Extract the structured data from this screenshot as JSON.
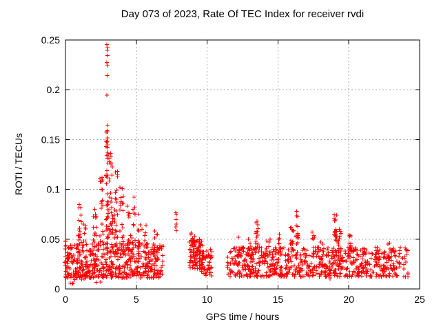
{
  "window_title": "Day 073 of 2023, Rate Of TEC Index for receiver rvdi",
  "chart_data": {
    "type": "scatter",
    "title": "Day 073 of 2023, Rate Of TEC Index for receiver rvdi",
    "xlabel": "GPS time / hours",
    "ylabel": "ROTI / TECUs",
    "xlim": [
      0,
      25
    ],
    "ylim": [
      0,
      0.25
    ],
    "xticks": [
      0,
      5,
      10,
      15,
      20,
      25
    ],
    "xtick_labels": [
      "0",
      "5",
      "10",
      "15",
      "20",
      "25"
    ],
    "yticks": [
      0,
      0.05,
      0.1,
      0.15,
      0.2,
      0.25
    ],
    "ytick_labels": [
      "0",
      "0.05",
      "0.1",
      "0.15",
      "0.2",
      "0.25"
    ],
    "grid": "dotted interior gridlines",
    "legend": "none",
    "marker": "plus",
    "marker_color": "#ff0000",
    "grid_color": "#a8a8a8",
    "axis_color": "#000000",
    "seed": 73,
    "bands": [
      {
        "x0": -0.04,
        "x1": 6.9,
        "y0": 0.011,
        "y1": 0.046,
        "n": 560,
        "skew": 1.35
      },
      {
        "x0": 0.3,
        "x1": 2.8,
        "y0": 0.005,
        "y1": 0.012,
        "n": 8,
        "skew": 1.0
      },
      {
        "x0": 8.75,
        "x1": 9.7,
        "y0": 0.02,
        "y1": 0.05,
        "n": 85,
        "skew": 1.2
      },
      {
        "x0": 9.55,
        "x1": 10.35,
        "y0": 0.013,
        "y1": 0.04,
        "n": 55,
        "skew": 1.2
      },
      {
        "x0": 11.4,
        "x1": 24.2,
        "y0": 0.012,
        "y1": 0.042,
        "n": 730,
        "skew": 1.3
      }
    ],
    "spikes": [
      {
        "x": 0.12,
        "w": 0.25,
        "y0": 0.012,
        "y1": 0.048,
        "n": 18
      },
      {
        "x": 1.02,
        "w": 0.25,
        "y0": 0.045,
        "y1": 0.085,
        "n": 16
      },
      {
        "x": 1.35,
        "w": 0.2,
        "y0": 0.04,
        "y1": 0.065,
        "n": 8
      },
      {
        "x": 2.1,
        "w": 0.3,
        "y0": 0.04,
        "y1": 0.08,
        "n": 14
      },
      {
        "x": 2.55,
        "w": 0.25,
        "y0": 0.045,
        "y1": 0.112,
        "n": 20
      },
      {
        "x": 2.95,
        "w": 0.18,
        "y0": 0.05,
        "y1": 0.158,
        "n": 40
      },
      {
        "x": 3.2,
        "w": 0.3,
        "y0": 0.055,
        "y1": 0.136,
        "n": 30
      },
      {
        "x": 3.55,
        "w": 0.25,
        "y0": 0.05,
        "y1": 0.118,
        "n": 22
      },
      {
        "x": 3.95,
        "w": 0.3,
        "y0": 0.045,
        "y1": 0.102,
        "n": 18
      },
      {
        "x": 4.45,
        "w": 0.3,
        "y0": 0.04,
        "y1": 0.083,
        "n": 14
      },
      {
        "x": 4.8,
        "w": 0.25,
        "y0": 0.04,
        "y1": 0.092,
        "n": 12
      },
      {
        "x": 5.25,
        "w": 0.3,
        "y0": 0.04,
        "y1": 0.075,
        "n": 12
      },
      {
        "x": 5.7,
        "w": 0.25,
        "y0": 0.038,
        "y1": 0.064,
        "n": 8
      },
      {
        "x": 6.4,
        "w": 0.35,
        "y0": 0.035,
        "y1": 0.058,
        "n": 10
      },
      {
        "x": 9.0,
        "w": 0.35,
        "y0": 0.038,
        "y1": 0.056,
        "n": 12
      },
      {
        "x": 9.55,
        "w": 0.3,
        "y0": 0.032,
        "y1": 0.05,
        "n": 8
      },
      {
        "x": 12.35,
        "w": 0.35,
        "y0": 0.032,
        "y1": 0.052,
        "n": 10
      },
      {
        "x": 13.0,
        "w": 0.25,
        "y0": 0.032,
        "y1": 0.05,
        "n": 8
      },
      {
        "x": 13.5,
        "w": 0.22,
        "y0": 0.038,
        "y1": 0.068,
        "n": 18
      },
      {
        "x": 14.3,
        "w": 0.3,
        "y0": 0.03,
        "y1": 0.05,
        "n": 8
      },
      {
        "x": 15.15,
        "w": 0.25,
        "y0": 0.032,
        "y1": 0.055,
        "n": 10
      },
      {
        "x": 16.0,
        "w": 0.3,
        "y0": 0.038,
        "y1": 0.062,
        "n": 12
      },
      {
        "x": 16.35,
        "w": 0.18,
        "y0": 0.045,
        "y1": 0.078,
        "n": 14
      },
      {
        "x": 17.5,
        "w": 0.3,
        "y0": 0.032,
        "y1": 0.057,
        "n": 10
      },
      {
        "x": 18.05,
        "w": 0.25,
        "y0": 0.028,
        "y1": 0.047,
        "n": 7
      },
      {
        "x": 18.6,
        "w": 0.2,
        "y0": 0.008,
        "y1": 0.02,
        "n": 7
      },
      {
        "x": 19.05,
        "w": 0.22,
        "y0": 0.048,
        "y1": 0.0745,
        "n": 22
      },
      {
        "x": 19.35,
        "w": 0.25,
        "y0": 0.038,
        "y1": 0.06,
        "n": 12
      },
      {
        "x": 20.08,
        "w": 0.18,
        "y0": 0.032,
        "y1": 0.054,
        "n": 12
      },
      {
        "x": 21.0,
        "w": 0.3,
        "y0": 0.03,
        "y1": 0.04,
        "n": 6
      },
      {
        "x": 22.0,
        "w": 0.4,
        "y0": 0.028,
        "y1": 0.042,
        "n": 8
      },
      {
        "x": 23.0,
        "w": 0.5,
        "y0": 0.03,
        "y1": 0.046,
        "n": 14
      }
    ],
    "outliers": [
      [
        2.93,
        0.2455
      ],
      [
        2.97,
        0.2425
      ],
      [
        2.94,
        0.2395
      ],
      [
        2.96,
        0.2345
      ],
      [
        2.92,
        0.2275
      ],
      [
        2.96,
        0.2245
      ],
      [
        2.94,
        0.2145
      ],
      [
        2.93,
        0.1945
      ],
      [
        2.97,
        0.1645
      ],
      [
        2.95,
        0.159
      ],
      [
        2.96,
        0.1515
      ],
      [
        2.93,
        0.1475
      ],
      [
        3.3,
        0.1225
      ],
      [
        7.79,
        0.0765
      ],
      [
        7.83,
        0.0748
      ],
      [
        7.8,
        0.0695
      ],
      [
        7.82,
        0.0652
      ],
      [
        7.78,
        0.0625
      ],
      [
        7.84,
        0.0585
      ]
    ]
  }
}
